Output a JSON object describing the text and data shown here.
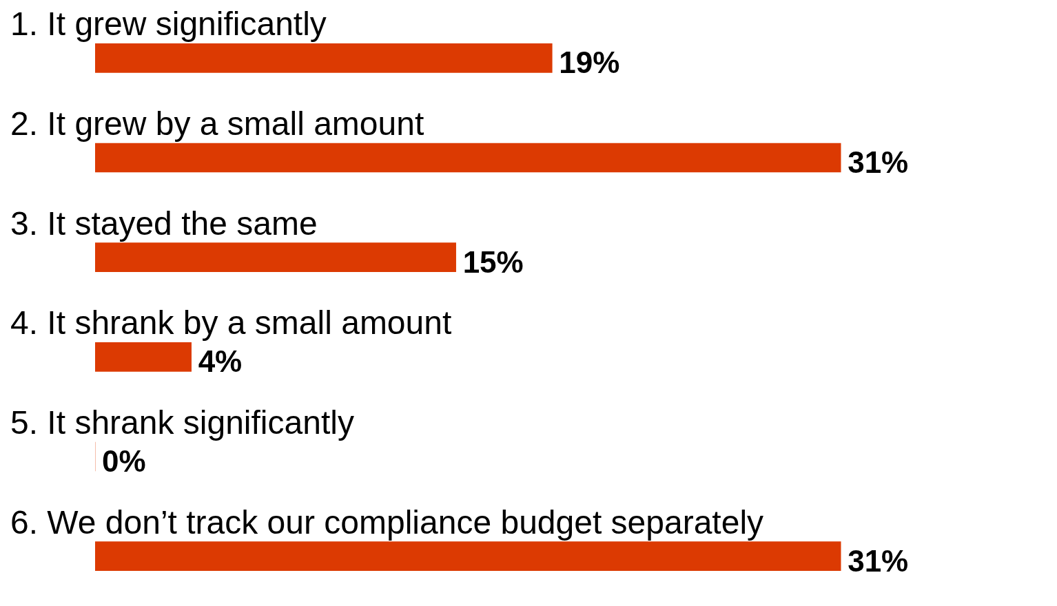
{
  "chart_data": {
    "type": "bar",
    "orientation": "horizontal",
    "categories": [
      "1. It grew significantly",
      "2. It grew by a small amount",
      "3. It stayed the same",
      "4. It shrank by a small amount",
      "5. It shrank significantly",
      "6. We don’t track our compliance budget separately"
    ],
    "values": [
      19,
      31,
      15,
      4,
      0,
      31
    ],
    "value_labels": [
      "19%",
      "31%",
      "15%",
      "4%",
      "0%",
      "31%"
    ],
    "color": "#dc3a02",
    "legend": false
  }
}
